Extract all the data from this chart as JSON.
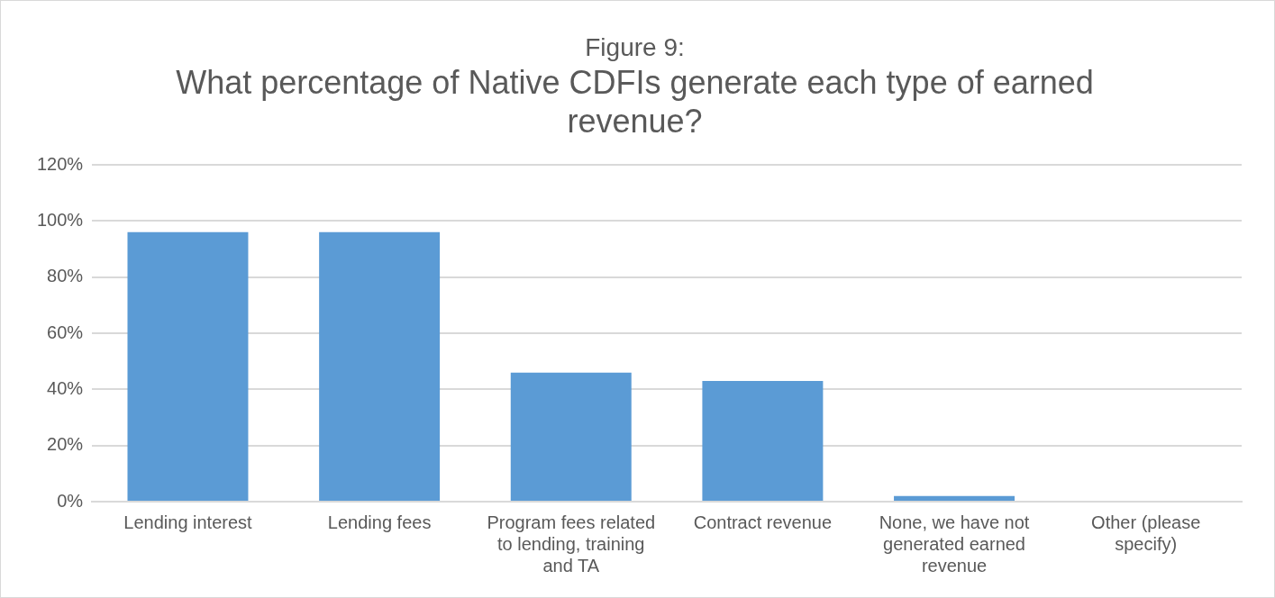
{
  "chart_data": {
    "type": "bar",
    "title": "Figure 9:",
    "subtitle": "What percentage of Native CDFIs generate each type of earned revenue?",
    "categories": [
      "Lending interest",
      "Lending fees",
      "Program fees related to lending, training and TA",
      "Contract revenue",
      "None, we have not generated earned revenue",
      "Other (please specify)"
    ],
    "values": [
      96,
      96,
      46,
      43,
      2,
      0
    ],
    "color": "#5b9bd5",
    "ylim": [
      0,
      120
    ],
    "yticks": [
      {
        "value": 0,
        "label": "0%"
      },
      {
        "value": 20,
        "label": "20%"
      },
      {
        "value": 40,
        "label": "40%"
      },
      {
        "value": 60,
        "label": "60%"
      },
      {
        "value": 80,
        "label": "80%"
      },
      {
        "value": 100,
        "label": "100%"
      },
      {
        "value": 120,
        "label": "120%"
      }
    ],
    "grid": "y",
    "legend": false
  }
}
